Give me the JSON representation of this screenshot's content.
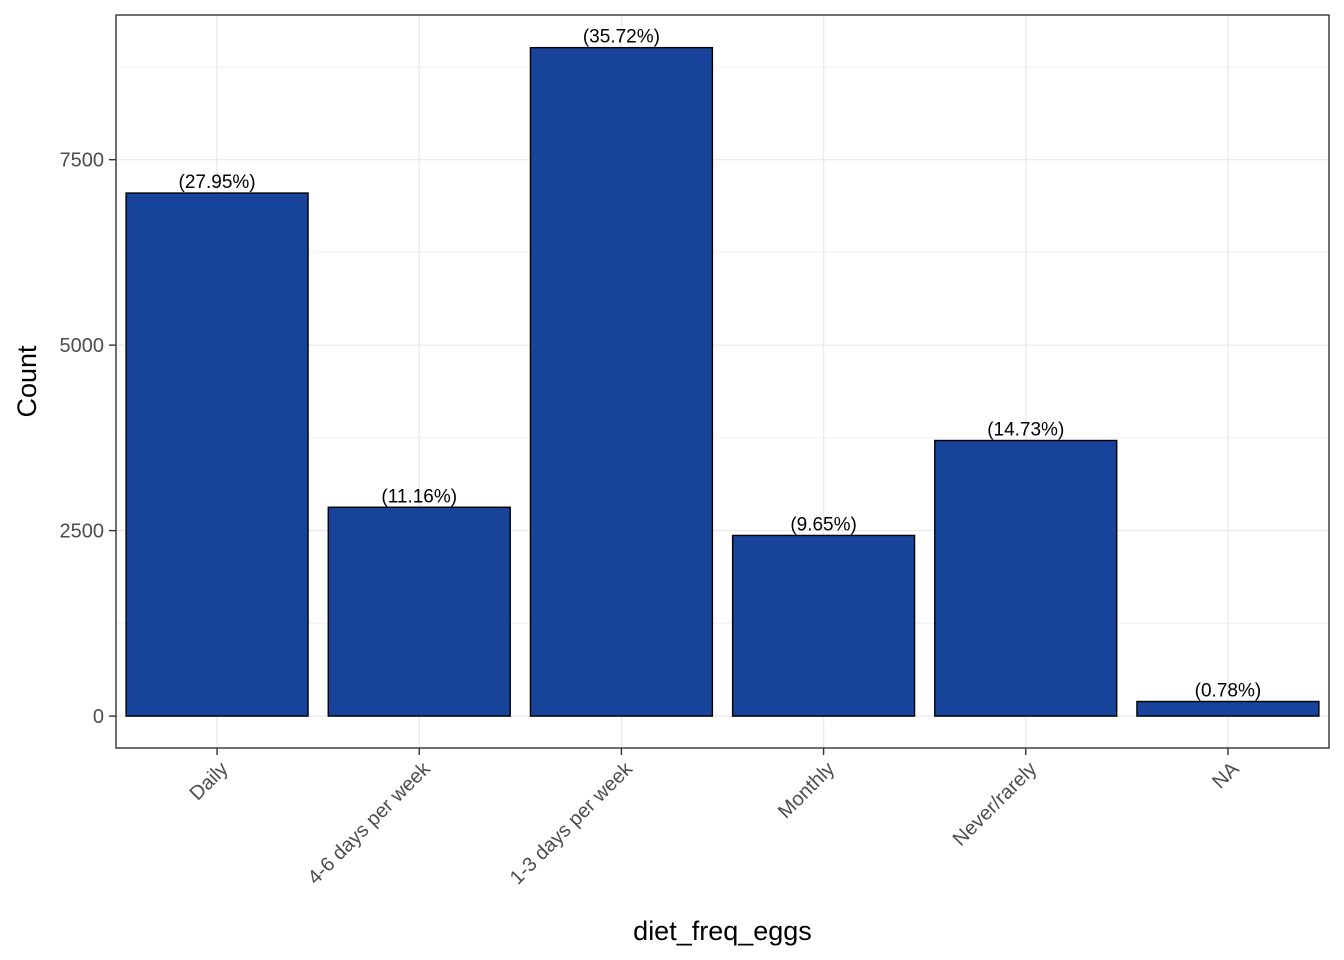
{
  "chart_data": {
    "type": "bar",
    "categories": [
      "Daily",
      "4-6 days per week",
      "1-3 days per week",
      "Monthly",
      "Never/rarely",
      "NA"
    ],
    "values": [
      7050,
      2815,
      9010,
      2435,
      3715,
      197
    ],
    "bar_labels": [
      "(27.95%)",
      "(11.16%)",
      "(35.72%)",
      "(9.65%)",
      "(14.73%)",
      "(0.78%)"
    ],
    "xlabel": "diet_freq_eggs",
    "ylabel": "Count",
    "ylim": [
      -430,
      9450
    ],
    "yticks": [
      0,
      2500,
      5000,
      7500
    ],
    "ytick_labels": [
      "0",
      "2500",
      "5000",
      "7500"
    ],
    "grid": true,
    "colors": {
      "bar_fill": "#17439a",
      "bar_stroke": "#000000",
      "grid_major": "#ebebeb",
      "grid_minor": "#f3f3f3",
      "panel_border": "#333333"
    }
  }
}
